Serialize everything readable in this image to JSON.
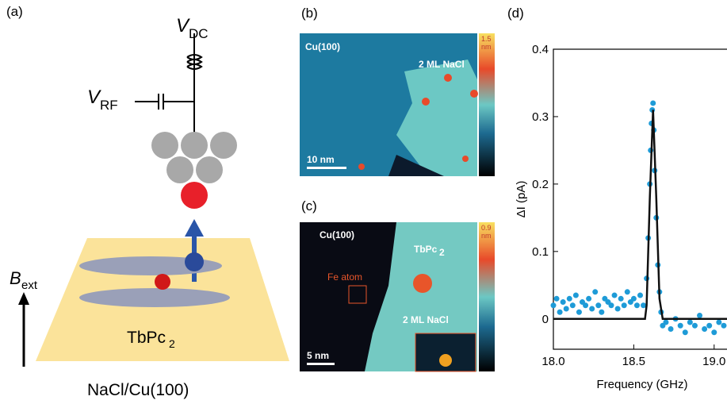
{
  "panels": {
    "a": {
      "label": "(a)",
      "v_dc": {
        "symbol": "V",
        "subscript": "DC"
      },
      "v_rf": {
        "symbol": "V",
        "subscript": "RF"
      },
      "b_ext": {
        "symbol": "B",
        "subscript": "ext"
      },
      "molecule": {
        "base": "TbPc",
        "subscript": "2"
      },
      "substrate": "NaCl/Cu(100)"
    },
    "b": {
      "label": "(b)",
      "substrate_label": "Cu(100)",
      "salt_label": "2 ML NaCl",
      "scale_bar": "10 nm",
      "colorbar_max": "1.5",
      "colorbar_unit": "nm"
    },
    "c": {
      "label": "(c)",
      "substrate_label": "Cu(100)",
      "molecule": {
        "base": "TbPc",
        "subscript": "2"
      },
      "atom_label": "Fe atom",
      "salt_label": "2 ML NaCl",
      "scale_bar": "5 nm",
      "colorbar_max": "0.9",
      "colorbar_unit": "nm"
    }
  },
  "chart_data": {
    "type": "scatter",
    "panel_label": "(d)",
    "x_label": "Frequency (GHz)",
    "y_label": "ΔI (pA)",
    "xlim": [
      18.0,
      19.08
    ],
    "ylim": [
      -0.045,
      0.4
    ],
    "xticks": [
      {
        "value": 18.0,
        "label": "18.0"
      },
      {
        "value": 18.5,
        "label": "18.5"
      },
      {
        "value": 19.0,
        "label": "19.0"
      }
    ],
    "yticks": [
      0,
      0.1,
      0.2,
      0.3,
      0.4
    ],
    "series": [
      {
        "color": "#1e9bd7",
        "marker": "circle",
        "x": [
          18.0,
          18.02,
          18.04,
          18.06,
          18.08,
          18.1,
          18.12,
          18.14,
          18.16,
          18.18,
          18.2,
          18.22,
          18.24,
          18.26,
          18.28,
          18.3,
          18.32,
          18.34,
          18.36,
          18.38,
          18.4,
          18.42,
          18.44,
          18.46,
          18.48,
          18.5,
          18.52,
          18.54,
          18.56,
          18.58,
          18.59,
          18.6,
          18.605,
          18.61,
          18.615,
          18.62,
          18.625,
          18.63,
          18.64,
          18.65,
          18.66,
          18.67,
          18.68,
          18.7,
          18.73,
          18.76,
          18.79,
          18.82,
          18.85,
          18.88,
          18.91,
          18.94,
          18.97,
          19.0,
          19.03,
          19.06
        ],
        "values": [
          0.02,
          0.03,
          0.01,
          0.025,
          0.015,
          0.03,
          0.02,
          0.035,
          0.01,
          0.025,
          0.02,
          0.03,
          0.015,
          0.04,
          0.02,
          0.01,
          0.03,
          0.025,
          0.02,
          0.035,
          0.015,
          0.03,
          0.02,
          0.04,
          0.025,
          0.03,
          0.02,
          0.035,
          0.02,
          0.06,
          0.12,
          0.2,
          0.25,
          0.29,
          0.31,
          0.32,
          0.28,
          0.22,
          0.15,
          0.08,
          0.04,
          0.01,
          -0.01,
          -0.005,
          -0.015,
          0.0,
          -0.01,
          -0.02,
          -0.005,
          -0.01,
          0.005,
          -0.015,
          -0.01,
          -0.02,
          -0.005,
          -0.01
        ]
      },
      {
        "color": "#111111",
        "style": "line",
        "x": [
          18.0,
          18.57,
          18.58,
          18.6,
          18.62,
          18.64,
          18.66,
          18.68,
          19.08
        ],
        "values": [
          0,
          0,
          0.02,
          0.18,
          0.31,
          0.18,
          0.03,
          0,
          0
        ]
      }
    ]
  }
}
